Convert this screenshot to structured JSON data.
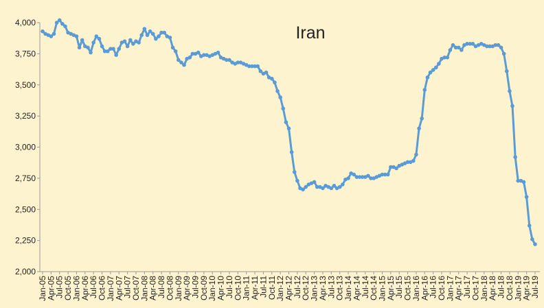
{
  "chart_data": {
    "type": "line",
    "title": "Iran",
    "color": "#5b9bd5",
    "categories": [
      "Jan-05",
      null,
      null,
      "Apr-05",
      null,
      null,
      "Jul-05",
      null,
      null,
      "Oct-05",
      null,
      null,
      "Jan-06",
      null,
      null,
      "Apr-06",
      null,
      null,
      "Jul-06",
      null,
      null,
      "Oct-06",
      null,
      null,
      "Jan-07",
      null,
      null,
      "Apr-07",
      null,
      null,
      "Jul-07",
      null,
      null,
      "Oct-07",
      null,
      null,
      "Jan-08",
      null,
      null,
      "Apr-08",
      null,
      null,
      "Jul-08",
      null,
      null,
      "Oct-08",
      null,
      null,
      "Jan-09",
      null,
      null,
      "Apr-09",
      null,
      null,
      "Jul-09",
      null,
      null,
      "Oct-09",
      null,
      null,
      "Jan-10",
      null,
      null,
      "Apr-10",
      null,
      null,
      "Jul-10",
      null,
      null,
      "Oct-10",
      null,
      null,
      "Jan-11",
      null,
      null,
      "Apr-11",
      null,
      null,
      "Jul-11",
      null,
      null,
      "Oct-11",
      null,
      null,
      "Jan-12",
      null,
      null,
      "Apr-12",
      null,
      null,
      "Jul-12",
      null,
      null,
      "Oct-12",
      null,
      null,
      "Jan-13",
      null,
      null,
      "Apr-13",
      null,
      null,
      "Jul-13",
      null,
      null,
      "Oct-13",
      null,
      null,
      "Jan-14",
      null,
      null,
      "Apr-14",
      null,
      null,
      "Jul-14",
      null,
      null,
      "Oct-14",
      null,
      null,
      "Jan-15",
      null,
      null,
      "Apr-15",
      null,
      null,
      "Jul-15",
      null,
      null,
      "Oct-15",
      null,
      null,
      "Jan-16",
      null,
      null,
      "Apr-16",
      null,
      null,
      "Jul-16",
      null,
      null,
      "Oct-16",
      null,
      null,
      "Jan-17",
      null,
      null,
      "Apr-17",
      null,
      null,
      "Jul-17",
      null,
      null,
      "Oct-17",
      null,
      null,
      "Jan-18",
      null,
      null,
      "Apr-18",
      null,
      null,
      "Jul-18",
      null,
      null,
      "Oct-18",
      null,
      null,
      "Jan-19",
      null,
      null,
      "Apr-19",
      null,
      null,
      "Jul-19"
    ],
    "values": [
      3930,
      3910,
      3900,
      3890,
      3910,
      4000,
      4020,
      3990,
      3970,
      3920,
      3910,
      3900,
      3890,
      3800,
      3860,
      3810,
      3800,
      3760,
      3840,
      3890,
      3870,
      3810,
      3770,
      3770,
      3790,
      3790,
      3740,
      3790,
      3840,
      3850,
      3810,
      3860,
      3830,
      3850,
      3840,
      3900,
      3950,
      3900,
      3930,
      3910,
      3870,
      3890,
      3920,
      3920,
      3890,
      3880,
      3800,
      3770,
      3700,
      3680,
      3660,
      3710,
      3720,
      3750,
      3750,
      3760,
      3730,
      3740,
      3740,
      3730,
      3740,
      3750,
      3760,
      3720,
      3710,
      3700,
      3700,
      3680,
      3670,
      3680,
      3680,
      3670,
      3660,
      3650,
      3650,
      3650,
      3650,
      3610,
      3590,
      3600,
      3560,
      3550,
      3520,
      3450,
      3400,
      3310,
      3200,
      3150,
      2960,
      2800,
      2730,
      2670,
      2660,
      2680,
      2700,
      2710,
      2720,
      2680,
      2680,
      2670,
      2690,
      2680,
      2670,
      2690,
      2670,
      2680,
      2700,
      2740,
      2750,
      2790,
      2780,
      2760,
      2760,
      2760,
      2760,
      2770,
      2750,
      2750,
      2760,
      2770,
      2780,
      2780,
      2780,
      2840,
      2840,
      2830,
      2850,
      2860,
      2870,
      2880,
      2880,
      2890,
      2940,
      3150,
      3230,
      3460,
      3560,
      3600,
      3620,
      3640,
      3670,
      3710,
      3720,
      3720,
      3780,
      3820,
      3800,
      3800,
      3780,
      3820,
      3830,
      3830,
      3830,
      3810,
      3820,
      3830,
      3820,
      3810,
      3810,
      3810,
      3820,
      3820,
      3800,
      3750,
      3610,
      3450,
      3330,
      2920,
      2730,
      2730,
      2720,
      2600,
      2370,
      2260,
      2220
    ],
    "ylim": [
      2000,
      4000
    ],
    "yticks": [
      {
        "value": 2000,
        "label": "2,000"
      },
      {
        "value": 2250,
        "label": "2,250"
      },
      {
        "value": 2500,
        "label": "2,500"
      },
      {
        "value": 2750,
        "label": "2,750"
      },
      {
        "value": 3000,
        "label": "3,000"
      },
      {
        "value": 3250,
        "label": "3,250"
      },
      {
        "value": 3500,
        "label": "3,500"
      },
      {
        "value": 3750,
        "label": "3,750"
      },
      {
        "value": 4000,
        "label": "4,000"
      }
    ],
    "grid": false
  }
}
